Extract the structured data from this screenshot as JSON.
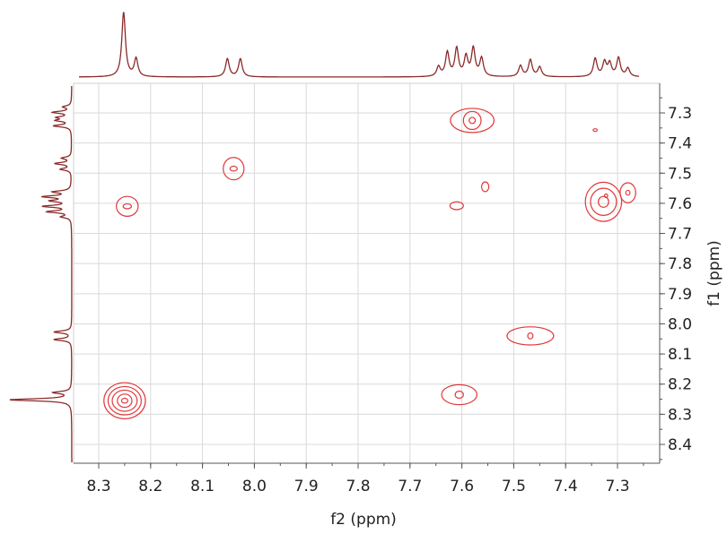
{
  "chart_data": {
    "type": "contour",
    "xlabel": "f2 (ppm)",
    "ylabel": "f1 (ppm)",
    "xlim": [
      8.34,
      7.23
    ],
    "ylim": [
      7.22,
      8.47
    ],
    "x_reversed": true,
    "y_reversed": true,
    "x_ticks": [
      "8.3",
      "8.2",
      "8.1",
      "8.0",
      "7.9",
      "7.8",
      "7.7",
      "7.6",
      "7.5",
      "7.4",
      "7.3"
    ],
    "y_ticks": [
      "7.3",
      "7.4",
      "7.5",
      "7.6",
      "7.7",
      "7.8",
      "7.9",
      "8.0",
      "8.1",
      "8.2",
      "8.3",
      "8.4"
    ],
    "grid": true,
    "colors": {
      "contour": "#e0393b",
      "projection": "#8b2a2a",
      "grid": "#d9d9d9",
      "text": "#222222"
    },
    "projection_peaks": [
      {
        "ppm": 8.252,
        "intensity": 1.0
      },
      {
        "ppm": 8.228,
        "intensity": 0.28
      },
      {
        "ppm": 8.052,
        "intensity": 0.28
      },
      {
        "ppm": 8.027,
        "intensity": 0.28
      },
      {
        "ppm": 7.645,
        "intensity": 0.15
      },
      {
        "ppm": 7.628,
        "intensity": 0.37
      },
      {
        "ppm": 7.61,
        "intensity": 0.43
      },
      {
        "ppm": 7.592,
        "intensity": 0.3
      },
      {
        "ppm": 7.578,
        "intensity": 0.43
      },
      {
        "ppm": 7.562,
        "intensity": 0.28
      },
      {
        "ppm": 7.487,
        "intensity": 0.17
      },
      {
        "ppm": 7.468,
        "intensity": 0.26
      },
      {
        "ppm": 7.45,
        "intensity": 0.15
      },
      {
        "ppm": 7.343,
        "intensity": 0.28
      },
      {
        "ppm": 7.325,
        "intensity": 0.22
      },
      {
        "ppm": 7.315,
        "intensity": 0.2
      },
      {
        "ppm": 7.298,
        "intensity": 0.29
      },
      {
        "ppm": 7.28,
        "intensity": 0.13
      }
    ],
    "cross_peaks": [
      {
        "f2": 8.245,
        "f1": 7.61,
        "levels": [
          [
            0.021,
            0.033
          ],
          [
            0.008,
            0.008
          ]
        ]
      },
      {
        "f2": 8.04,
        "f1": 7.485,
        "levels": [
          [
            0.02,
            0.037
          ],
          [
            0.007,
            0.008
          ]
        ]
      },
      {
        "f2": 8.25,
        "f1": 8.255,
        "levels": [
          [
            0.04,
            0.06
          ],
          [
            0.032,
            0.047
          ],
          [
            0.024,
            0.035
          ],
          [
            0.014,
            0.022
          ],
          [
            0.006,
            0.008
          ]
        ]
      },
      {
        "f2": 7.605,
        "f1": 8.235,
        "levels": [
          [
            0.034,
            0.033
          ],
          [
            0.008,
            0.012
          ]
        ]
      },
      {
        "f2": 7.58,
        "f1": 7.325,
        "levels": [
          [
            0.042,
            0.04
          ],
          [
            0.017,
            0.03
          ],
          [
            0.006,
            0.01
          ]
        ]
      },
      {
        "f2": 7.61,
        "f1": 7.608,
        "levels": [
          [
            0.013,
            0.013
          ]
        ]
      },
      {
        "f2": 7.555,
        "f1": 7.545,
        "levels": [
          [
            0.007,
            0.016
          ]
        ]
      },
      {
        "f2": 7.327,
        "f1": 7.595,
        "levels": [
          [
            0.035,
            0.065
          ],
          [
            0.025,
            0.045
          ],
          [
            0.01,
            0.018
          ]
        ]
      },
      {
        "f2": 7.322,
        "f1": 7.575,
        "levels": [
          [
            0.003,
            0.006
          ]
        ]
      },
      {
        "f2": 7.28,
        "f1": 7.565,
        "levels": [
          [
            0.015,
            0.033
          ],
          [
            0.004,
            0.008
          ]
        ]
      },
      {
        "f2": 7.468,
        "f1": 8.04,
        "levels": [
          [
            0.045,
            0.03
          ],
          [
            0.005,
            0.01
          ]
        ]
      },
      {
        "f2": 7.343,
        "f1": 7.357,
        "levels": [
          [
            0.004,
            0.004
          ]
        ]
      }
    ]
  }
}
